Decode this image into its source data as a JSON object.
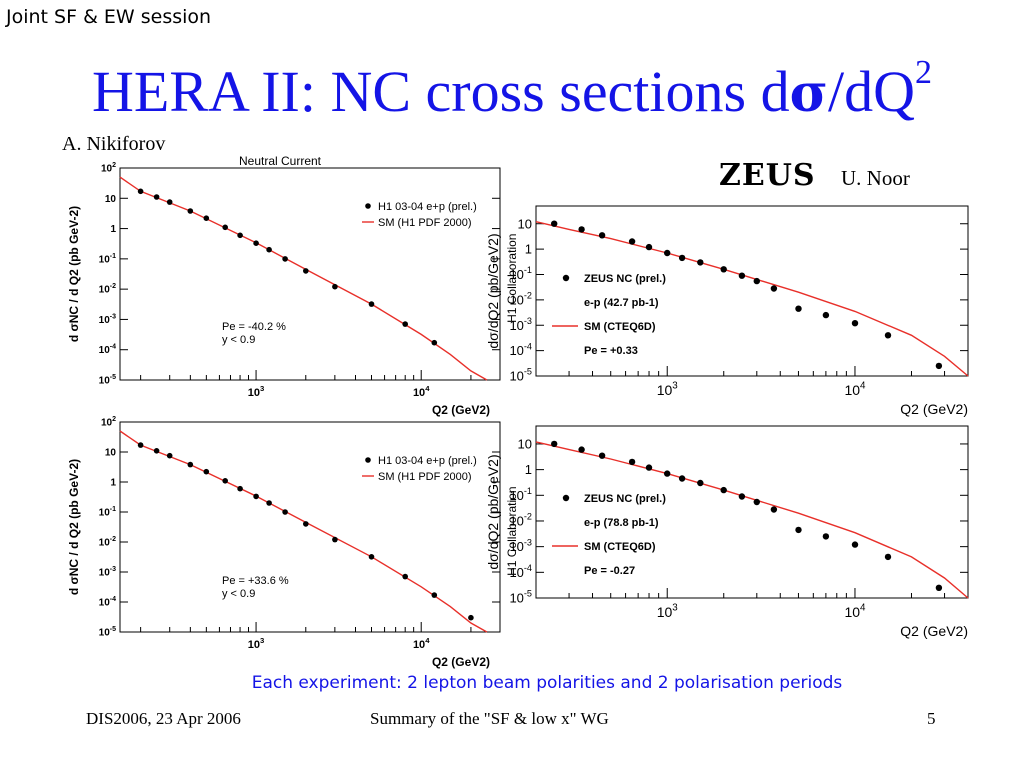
{
  "header": {
    "session": "Joint SF & EW session",
    "title_text": "HERA II:  NC cross sections d",
    "title_symbol": "σ",
    "title_suffix": "/dQ",
    "title_sup": "2",
    "author_left": "A. Nikiforov",
    "author_right": "U. Noor",
    "zeus_logo": "ZEUS"
  },
  "caption": "Each experiment:  2  lepton beam polarities and 2 polarisation periods",
  "footer": {
    "left": "DIS2006, 23 Apr 2006",
    "center": "Summary of  the \"SF & low x\" WG",
    "page": "5"
  },
  "colors": {
    "title": "#1414e6",
    "curve": "#e8302a",
    "caption": "#1414e6"
  },
  "chart_data": [
    {
      "id": "h1-top",
      "type": "scatter",
      "experiment": "H1",
      "title": "Neutral Current",
      "ylabel": "d σNC / d Q2 (pb GeV-2)",
      "xlabel": "Q2 (GeV2)",
      "side_label": "H1 Collaboration",
      "x_scale": "log",
      "y_scale": "log",
      "xlim": [
        150,
        30000
      ],
      "ylim": [
        1e-05,
        100
      ],
      "ytick_labels": [
        "10^2",
        "10",
        "1",
        "10^-1",
        "10^-2",
        "10^-3",
        "10^-4",
        "10^-5"
      ],
      "xtick_labels": [
        "10^3",
        "10^4"
      ],
      "legend": [
        "H1 03-04 e+p (prel.)",
        "SM (H1 PDF 2000)"
      ],
      "legend_position": "top-right",
      "annotation": [
        "Pe = -40.2 %",
        "y < 0.9"
      ],
      "points": {
        "x": [
          200,
          250,
          300,
          400,
          500,
          650,
          800,
          1000,
          1200,
          1500,
          2000,
          3000,
          5000,
          8000,
          12000
        ],
        "y": [
          17,
          11,
          7.5,
          3.8,
          2.2,
          1.1,
          0.6,
          0.33,
          0.2,
          0.1,
          0.04,
          0.012,
          0.0032,
          0.0007,
          0.00017
        ]
      },
      "curve": {
        "x": [
          130,
          200,
          400,
          1000,
          2000,
          5000,
          10000,
          15000,
          20000,
          25000
        ],
        "y": [
          50,
          17,
          3.8,
          0.34,
          0.045,
          0.0032,
          0.00032,
          7e-05,
          2e-05,
          7e-06
        ]
      }
    },
    {
      "id": "h1-bottom",
      "type": "scatter",
      "experiment": "H1",
      "ylabel": "d σNC / d Q2 (pb GeV-2)",
      "xlabel": "Q2 (GeV2)",
      "side_label": "H1 Collaboration",
      "x_scale": "log",
      "y_scale": "log",
      "xlim": [
        150,
        30000
      ],
      "ylim": [
        1e-05,
        100
      ],
      "ytick_labels": [
        "10^2",
        "10",
        "1",
        "10^-1",
        "10^-2",
        "10^-3",
        "10^-4",
        "10^-5"
      ],
      "xtick_labels": [
        "10^3",
        "10^4"
      ],
      "legend": [
        "H1 03-04 e+p (prel.)",
        "SM (H1 PDF 2000)"
      ],
      "legend_position": "top-right",
      "annotation": [
        "Pe = +33.6 %",
        "y < 0.9"
      ],
      "points": {
        "x": [
          200,
          250,
          300,
          400,
          500,
          650,
          800,
          1000,
          1200,
          1500,
          2000,
          3000,
          5000,
          8000,
          12000,
          20000
        ],
        "y": [
          17,
          11,
          7.5,
          3.8,
          2.2,
          1.1,
          0.6,
          0.33,
          0.2,
          0.1,
          0.04,
          0.012,
          0.0032,
          0.0007,
          0.00017,
          3e-05
        ]
      },
      "curve": {
        "x": [
          130,
          200,
          400,
          1000,
          2000,
          5000,
          10000,
          15000,
          20000,
          25000
        ],
        "y": [
          50,
          17,
          3.8,
          0.34,
          0.045,
          0.0032,
          0.00032,
          7e-05,
          2e-05,
          7e-06
        ]
      }
    },
    {
      "id": "zeus-top",
      "type": "scatter",
      "experiment": "ZEUS",
      "ylabel": "dσ/dQ2 (pb/GeV2)",
      "xlabel": "Q2 (GeV2)",
      "x_scale": "log",
      "y_scale": "log",
      "xlim": [
        200,
        40000
      ],
      "ylim": [
        1e-05,
        50
      ],
      "ytick_labels": [
        "10",
        "1",
        "10^-1",
        "10^-2",
        "10^-3",
        "10^-4",
        "10^-5"
      ],
      "xtick_labels": [
        "10^3",
        "10^4"
      ],
      "legend": [
        "ZEUS NC (prel.)",
        "e-p (42.7 pb-1)",
        "SM (CTEQ6D)",
        "Pe = +0.33"
      ],
      "legend_position": "bottom-left",
      "points": {
        "x": [
          250,
          350,
          450,
          650,
          800,
          1000,
          1200,
          1500,
          2000,
          2500,
          3000,
          3700,
          5000,
          7000,
          10000,
          15000,
          28000
        ],
        "y": [
          10,
          6,
          3.5,
          2,
          1.2,
          0.7,
          0.45,
          0.3,
          0.16,
          0.09,
          0.055,
          0.028,
          0.0045,
          0.0025,
          0.0012,
          0.0004,
          2.5e-05
        ]
      },
      "curve": {
        "x": [
          200,
          300,
          500,
          1000,
          2000,
          5000,
          10000,
          20000,
          30000,
          40000
        ],
        "y": [
          12,
          6,
          2.6,
          0.7,
          0.16,
          0.02,
          0.0035,
          0.0004,
          6e-05,
          1e-05
        ]
      }
    },
    {
      "id": "zeus-bottom",
      "type": "scatter",
      "experiment": "ZEUS",
      "ylabel": "dσ/dQ2 (pb/GeV2)",
      "xlabel": "Q2 (GeV2)",
      "x_scale": "log",
      "y_scale": "log",
      "xlim": [
        200,
        40000
      ],
      "ylim": [
        1e-05,
        50
      ],
      "ytick_labels": [
        "10",
        "1",
        "10^-1",
        "10^-2",
        "10^-3",
        "10^-4",
        "10^-5"
      ],
      "xtick_labels": [
        "10^3",
        "10^4"
      ],
      "legend": [
        "ZEUS NC (prel.)",
        "e-p (78.8 pb-1)",
        "SM (CTEQ6D)",
        "Pe = -0.27"
      ],
      "legend_position": "bottom-left",
      "points": {
        "x": [
          250,
          350,
          450,
          650,
          800,
          1000,
          1200,
          1500,
          2000,
          2500,
          3000,
          3700,
          5000,
          7000,
          10000,
          15000,
          28000
        ],
        "y": [
          10,
          6,
          3.5,
          2,
          1.2,
          0.7,
          0.45,
          0.3,
          0.16,
          0.09,
          0.055,
          0.028,
          0.0045,
          0.0025,
          0.0012,
          0.0004,
          2.5e-05
        ]
      },
      "curve": {
        "x": [
          200,
          300,
          500,
          1000,
          2000,
          5000,
          10000,
          20000,
          30000,
          40000
        ],
        "y": [
          12,
          6,
          2.6,
          0.7,
          0.16,
          0.02,
          0.0035,
          0.0004,
          6e-05,
          1e-05
        ]
      }
    }
  ]
}
